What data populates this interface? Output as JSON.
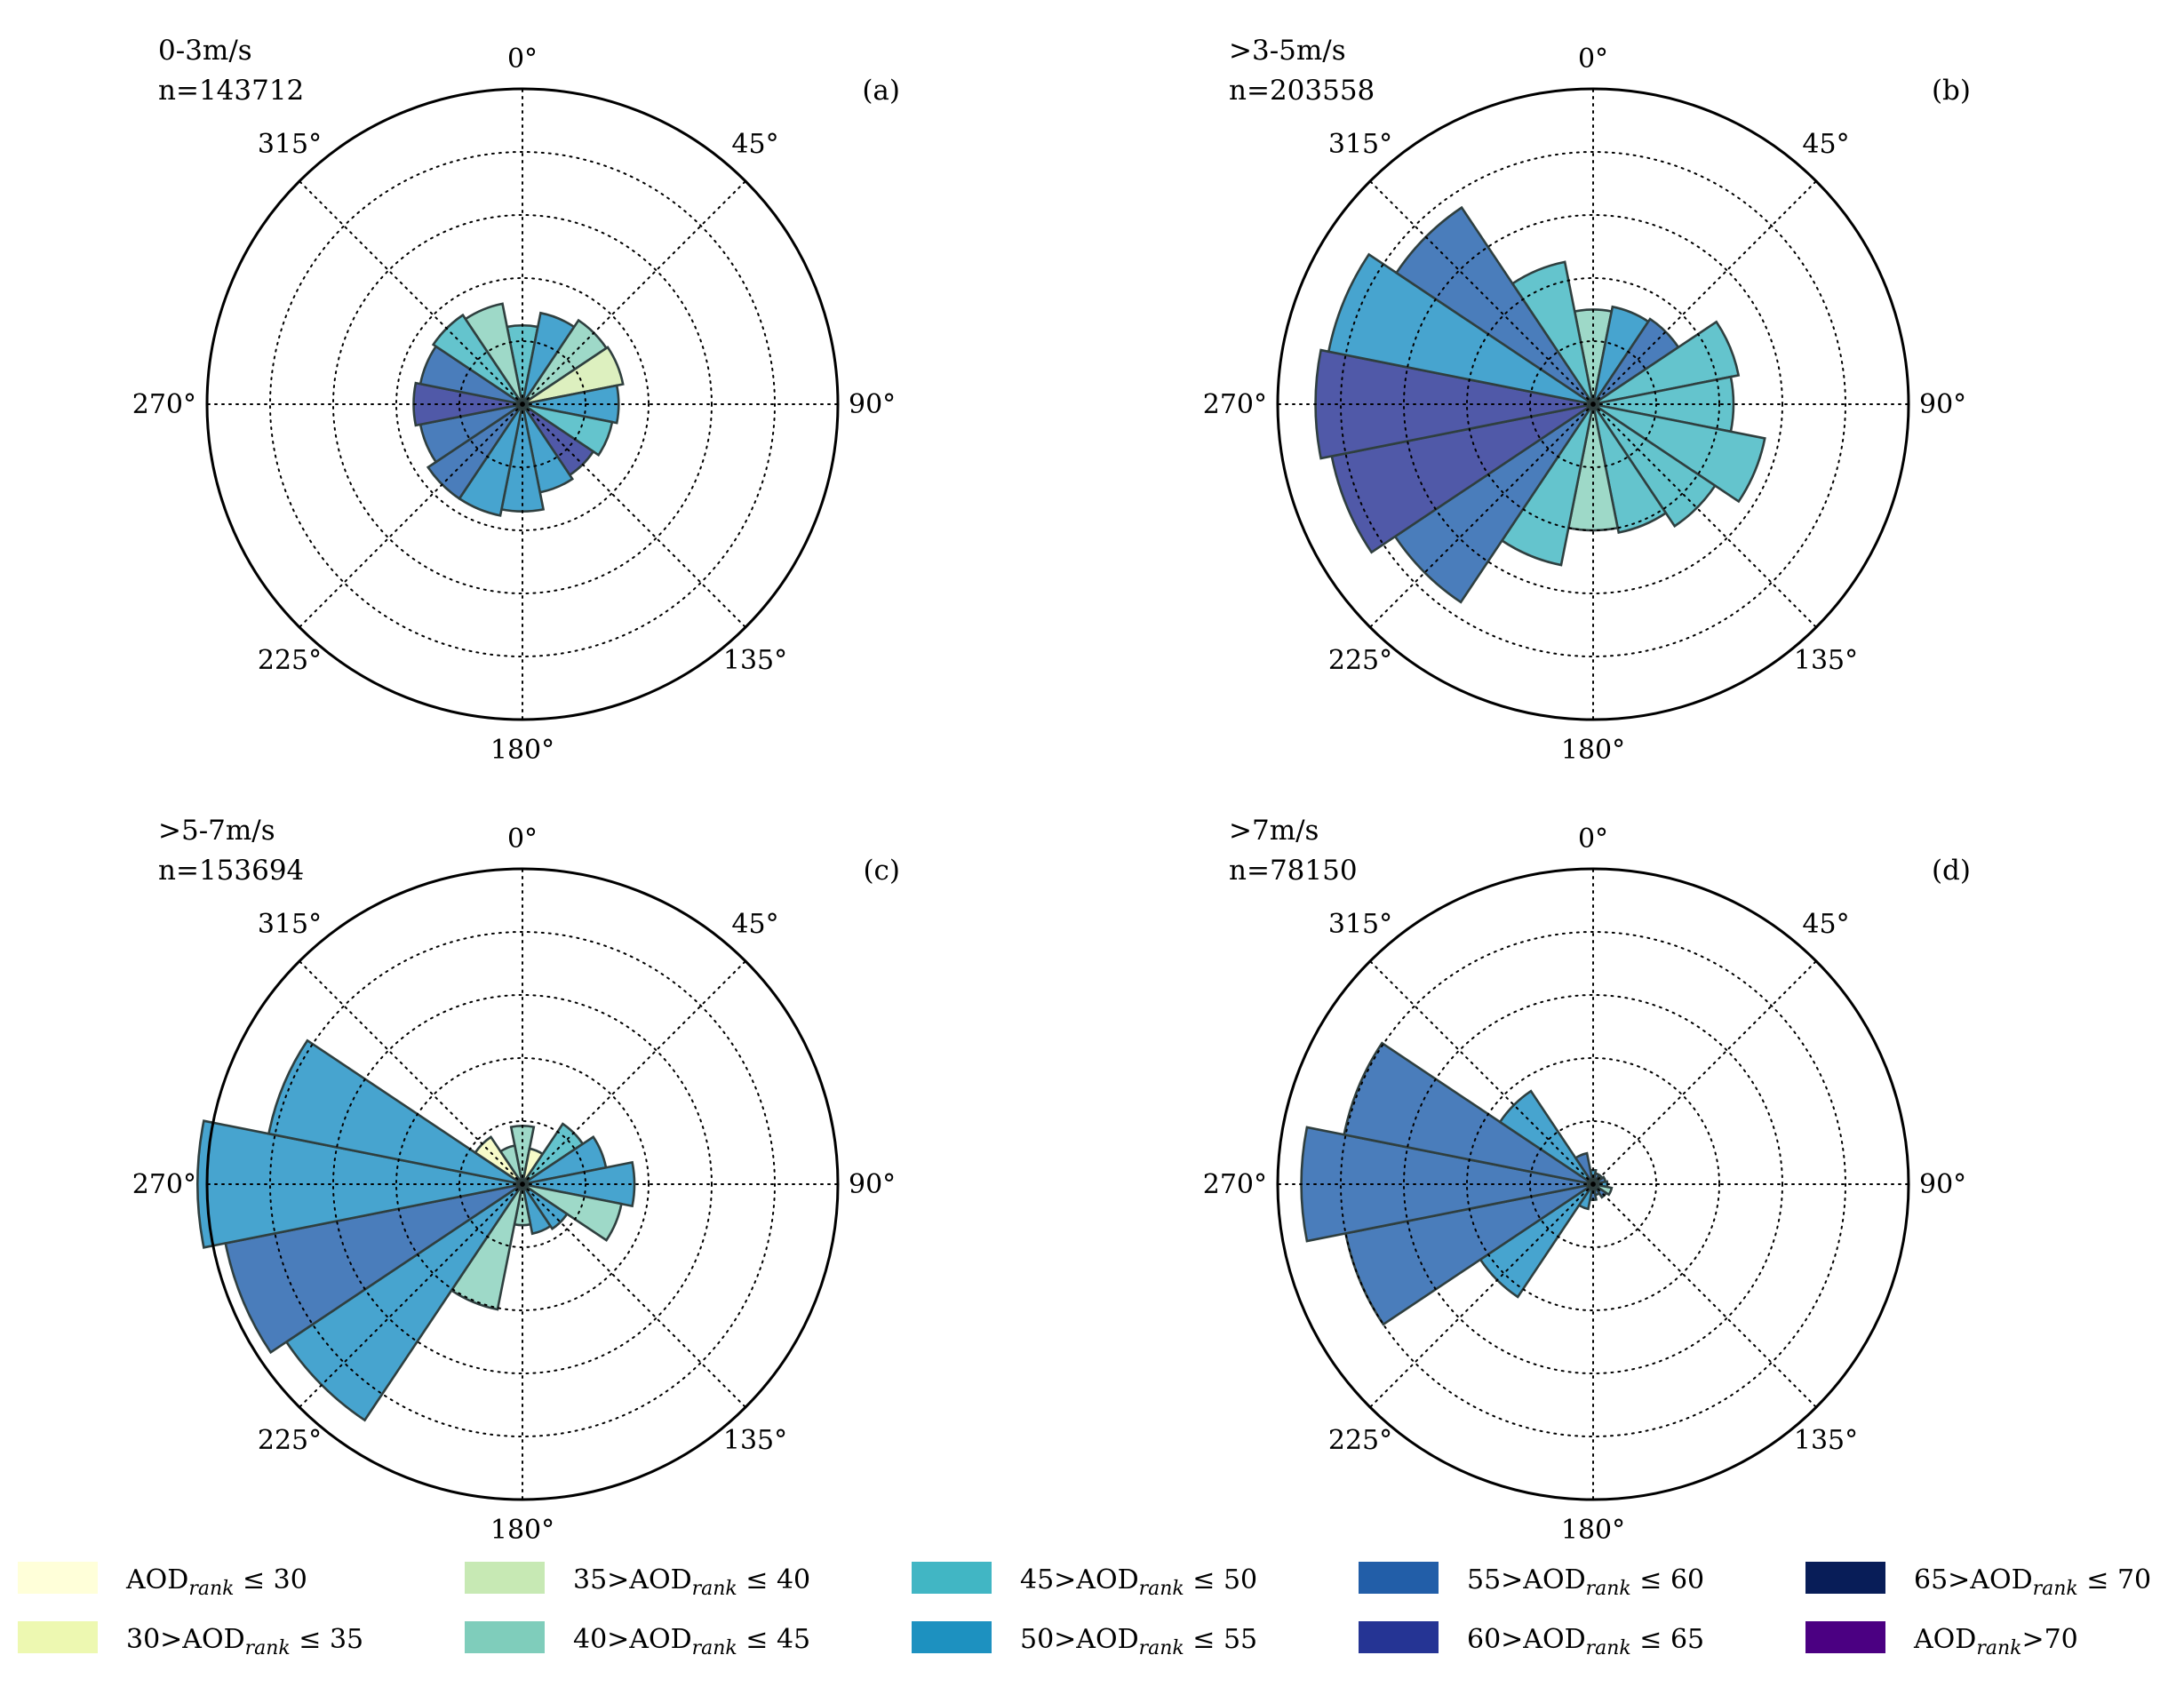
{
  "chart_data": {
    "type": "polar-bar",
    "direction_labels": [
      "0°",
      "45°",
      "90°",
      "135°",
      "180°",
      "225°",
      "270°",
      "315°"
    ],
    "sectors_deg": [
      0,
      22.5,
      45,
      67.5,
      90,
      112.5,
      135,
      157.5,
      180,
      202.5,
      225,
      247.5,
      270,
      292.5,
      315,
      337.5
    ],
    "rmax": 10,
    "rings": [
      2,
      4,
      6,
      8
    ],
    "panels": [
      {
        "id": "a",
        "speed": "0-3m/s",
        "n": "n=143712",
        "tag": "(a)",
        "bars": [
          {
            "r": 2.5,
            "cls": 4
          },
          {
            "r": 2.95,
            "cls": 5
          },
          {
            "r": 3.2,
            "cls": 3
          },
          {
            "r": 3.25,
            "cls": 2
          },
          {
            "r": 3.05,
            "cls": 5
          },
          {
            "r": 2.9,
            "cls": 4
          },
          {
            "r": 2.7,
            "cls": 7
          },
          {
            "r": 2.85,
            "cls": 5
          },
          {
            "r": 3.4,
            "cls": 5
          },
          {
            "r": 3.6,
            "cls": 5
          },
          {
            "r": 3.6,
            "cls": 6
          },
          {
            "r": 3.3,
            "cls": 6
          },
          {
            "r": 3.45,
            "cls": 7
          },
          {
            "r": 3.3,
            "cls": 6
          },
          {
            "r": 3.4,
            "cls": 4
          },
          {
            "r": 3.25,
            "cls": 3
          }
        ]
      },
      {
        "id": "b",
        "speed": ">3-5m/s",
        "n": "n=203558",
        "tag": "(b)",
        "bars": [
          {
            "r": 3.0,
            "cls": 3
          },
          {
            "r": 3.15,
            "cls": 5
          },
          {
            "r": 3.25,
            "cls": 6
          },
          {
            "r": 4.7,
            "cls": 4
          },
          {
            "r": 4.45,
            "cls": 4
          },
          {
            "r": 5.55,
            "cls": 4
          },
          {
            "r": 4.65,
            "cls": 4
          },
          {
            "r": 4.15,
            "cls": 4
          },
          {
            "r": 4.0,
            "cls": 3
          },
          {
            "r": 5.2,
            "cls": 4
          },
          {
            "r": 7.55,
            "cls": 6
          },
          {
            "r": 8.45,
            "cls": 7
          },
          {
            "r": 8.8,
            "cls": 7
          },
          {
            "r": 8.55,
            "cls": 5
          },
          {
            "r": 7.5,
            "cls": 6
          },
          {
            "r": 4.6,
            "cls": 4
          }
        ]
      },
      {
        "id": "c",
        "speed": ">5-7m/s",
        "n": "n=153694",
        "tag": "(c)",
        "bars": [
          {
            "r": 1.85,
            "cls": 3
          },
          {
            "r": 1.15,
            "cls": 1
          },
          {
            "r": 2.3,
            "cls": 4
          },
          {
            "r": 2.7,
            "cls": 5
          },
          {
            "r": 3.55,
            "cls": 5
          },
          {
            "r": 3.2,
            "cls": 3
          },
          {
            "r": 1.7,
            "cls": 5
          },
          {
            "r": 1.6,
            "cls": 5
          },
          {
            "r": 1.3,
            "cls": 3
          },
          {
            "r": 4.05,
            "cls": 3
          },
          {
            "r": 9.0,
            "cls": 5
          },
          {
            "r": 9.6,
            "cls": 6
          },
          {
            "r": 10.3,
            "cls": 5
          },
          {
            "r": 8.2,
            "cls": 5
          },
          {
            "r": 1.8,
            "cls": 1
          },
          {
            "r": 1.25,
            "cls": 3
          }
        ]
      },
      {
        "id": "d",
        "speed": ">7m/s",
        "n": "n=78150",
        "tag": "(d)",
        "bars": [
          {
            "r": 0.45,
            "cls": 5
          },
          {
            "r": 0.35,
            "cls": 6
          },
          {
            "r": 0.35,
            "cls": 5
          },
          {
            "r": 0.4,
            "cls": 6
          },
          {
            "r": 0.45,
            "cls": 5
          },
          {
            "r": 0.6,
            "cls": 3
          },
          {
            "r": 0.5,
            "cls": 6
          },
          {
            "r": 0.35,
            "cls": 6
          },
          {
            "r": 0.5,
            "cls": 6
          },
          {
            "r": 0.8,
            "cls": 5
          },
          {
            "r": 4.3,
            "cls": 5
          },
          {
            "r": 8.0,
            "cls": 6
          },
          {
            "r": 9.25,
            "cls": 6
          },
          {
            "r": 8.05,
            "cls": 6
          },
          {
            "r": 3.55,
            "cls": 5
          },
          {
            "r": 1.0,
            "cls": 6
          }
        ]
      }
    ],
    "legend": [
      {
        "pre": "",
        "sub": "rank",
        "post": " ≤ 30",
        "color": "#ffffd9"
      },
      {
        "pre": "30>",
        "sub": "rank",
        "post": " ≤ 35",
        "color": "#edf8b1"
      },
      {
        "pre": "35>",
        "sub": "rank",
        "post": " ≤ 40",
        "color": "#c7e9b4"
      },
      {
        "pre": "40>",
        "sub": "rank",
        "post": " ≤ 45",
        "color": "#7fcdbb"
      },
      {
        "pre": "45>",
        "sub": "rank",
        "post": " ≤ 50",
        "color": "#41b6c4"
      },
      {
        "pre": "50>",
        "sub": "rank",
        "post": " ≤ 55",
        "color": "#1d91c0"
      },
      {
        "pre": "55>",
        "sub": "rank",
        "post": " ≤ 60",
        "color": "#225ea8"
      },
      {
        "pre": "60>",
        "sub": "rank",
        "post": " ≤ 65",
        "color": "#253494"
      },
      {
        "pre": "65>",
        "sub": "rank",
        "post": " ≤ 70",
        "color": "#081d58"
      },
      {
        "pre": "",
        "sub": "rank",
        "post": ">70",
        "color": "#4b0082"
      }
    ],
    "legend_base": "AOD",
    "bar_fill_colors": [
      "#ffffd9",
      "#f7fbc9",
      "#ddf0bf",
      "#9ed9c8",
      "#64c4cd",
      "#47a4cf",
      "#4a7dbb",
      "#5059a8",
      "#2b3a7a",
      "#4b0082"
    ]
  }
}
